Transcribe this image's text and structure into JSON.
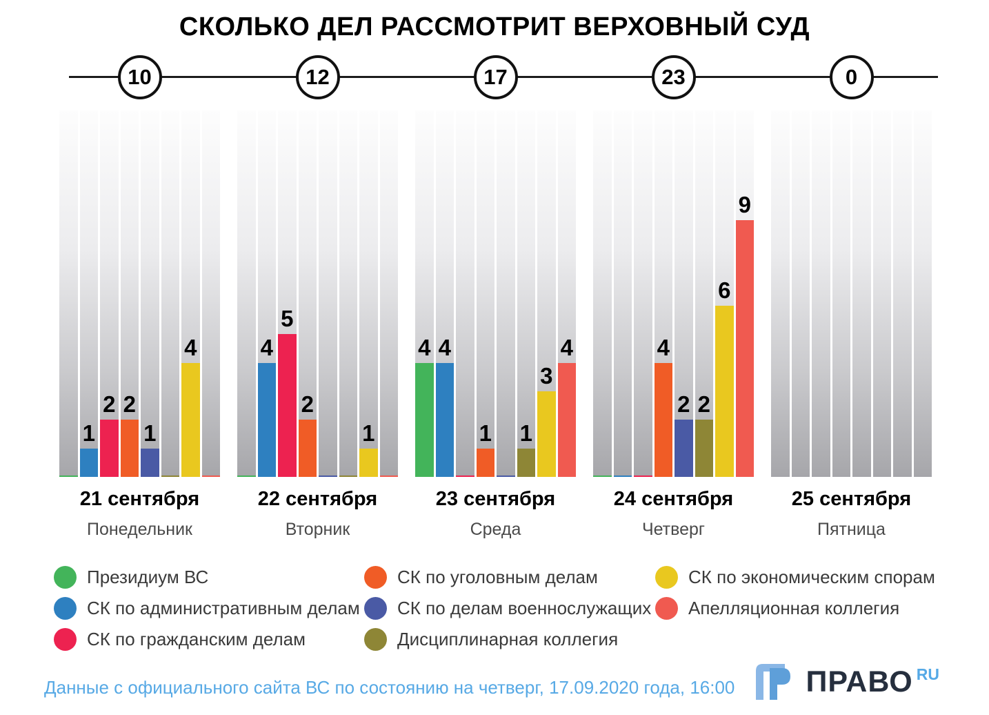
{
  "title": "СКОЛЬКО ДЕЛ РАССМОТРИТ ВЕРХОВНЫЙ СУД",
  "footer": {
    "source_note": "Данные с официального сайта ВС по состоянию на четверг, 17.09.2020 года, 16:00",
    "logo_text": "ПРАВО",
    "logo_suffix": "RU"
  },
  "colors": {
    "timeline_line": "#1c1c1c",
    "source_note_blue": "#57a9e5",
    "logo_dark": "#262f3e",
    "logo_blue": "#55a9e6"
  },
  "chart_data": {
    "type": "bar",
    "title": "СКОЛЬКО ДЕЛ РАССМОТРИТ ВЕРХОВНЫЙ СУД",
    "categories": [
      "21 сентября",
      "22 сентября",
      "23 сентября",
      "24 сентября",
      "25 сентября"
    ],
    "category_sublabels": [
      "Понедельник",
      "Вторник",
      "Среда",
      "Четверг",
      "Пятница"
    ],
    "totals": [
      10,
      12,
      17,
      23,
      0
    ],
    "series": [
      {
        "name": "Президиум ВС",
        "color": "#43b45a",
        "values": [
          0,
          0,
          4,
          0,
          0
        ]
      },
      {
        "name": "СК по административным делам",
        "color": "#2e80c0",
        "values": [
          1,
          4,
          4,
          0,
          0
        ]
      },
      {
        "name": "СК по гражданским делам",
        "color": "#ed2250",
        "values": [
          2,
          5,
          0,
          0,
          0
        ]
      },
      {
        "name": "СК по уголовным делам",
        "color": "#f05c26",
        "values": [
          2,
          2,
          1,
          4,
          0
        ]
      },
      {
        "name": "СК по делам военнослужащих",
        "color": "#4a5aa5",
        "values": [
          1,
          0,
          0,
          2,
          0
        ]
      },
      {
        "name": "Дисциплинарная коллегия",
        "color": "#8e8636",
        "values": [
          0,
          0,
          1,
          2,
          0
        ]
      },
      {
        "name": "СК по экономическим спорам",
        "color": "#e9c81f",
        "values": [
          4,
          1,
          3,
          6,
          0
        ]
      },
      {
        "name": "Апелляционная коллегия",
        "color": "#f05a50",
        "values": [
          0,
          0,
          4,
          9,
          0
        ]
      }
    ],
    "ylim": [
      0,
      13
    ],
    "grid": false,
    "legend_position": "bottom"
  }
}
